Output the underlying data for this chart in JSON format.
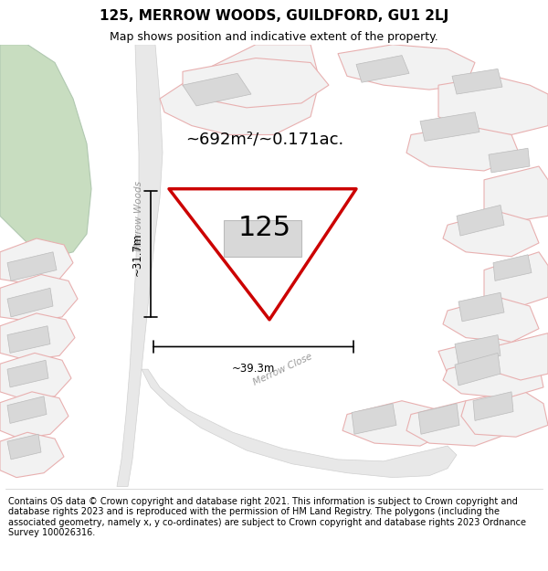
{
  "title": "125, MERROW WOODS, GUILDFORD, GU1 2LJ",
  "subtitle": "Map shows position and indicative extent of the property.",
  "footer": "Contains OS data © Crown copyright and database right 2021. This information is subject to Crown copyright and database rights 2023 and is reproduced with the permission of HM Land Registry. The polygons (including the associated geometry, namely x, y co-ordinates) are subject to Crown copyright and database rights 2023 Ordnance Survey 100026316.",
  "area_label": "~692m²/~0.171ac.",
  "plot_number": "125",
  "dim_width": "~39.3m",
  "dim_height": "~31.7m",
  "road_label_1": "Merrow Woods",
  "road_label_2": "Merrow Close",
  "highlight_color": "#cc0000",
  "road_color": "#f0a0a0",
  "boundary_color": "#e8b0b0",
  "building_color": "#d8d8d8",
  "building_edge": "#bbbbbb",
  "green_color": "#c8ddc0",
  "road_fill": "#e8e8e8",
  "road_edge": "#d0d0d0",
  "map_bg": "#f8f8f8",
  "title_fontsize": 11,
  "subtitle_fontsize": 9,
  "footer_fontsize": 7
}
